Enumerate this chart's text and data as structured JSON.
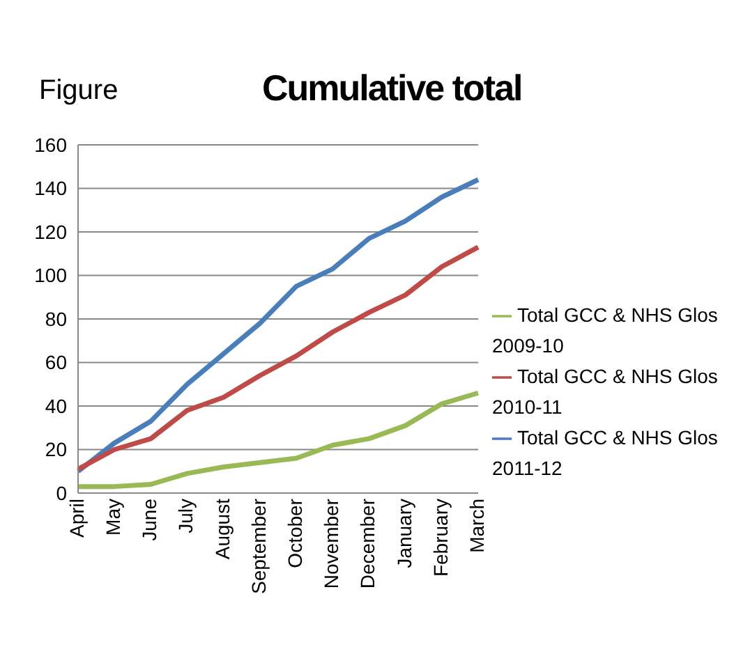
{
  "chart_data": {
    "type": "line",
    "title": "Cumulative total",
    "annotations": [
      "Figure"
    ],
    "categories": [
      "April",
      "May",
      "June",
      "July",
      "August",
      "September",
      "October",
      "November",
      "December",
      "January",
      "February",
      "March"
    ],
    "series": [
      {
        "name": "Total GCC & NHS Glos 2011-12",
        "color": "#4a7ebb",
        "values": [
          10,
          23,
          33,
          50,
          64,
          78,
          95,
          103,
          117,
          125,
          136,
          144
        ]
      },
      {
        "name": "Total GCC & NHS Glos 2010-11",
        "color": "#be4b48",
        "values": [
          11,
          20,
          25,
          38,
          44,
          54,
          63,
          74,
          83,
          91,
          104,
          113
        ]
      },
      {
        "name": "Total GCC & NHS Glos 2009-10",
        "color": "#98b954",
        "values": [
          3,
          3,
          4,
          9,
          12,
          14,
          16,
          22,
          25,
          31,
          41,
          46
        ]
      }
    ],
    "ylim": [
      0,
      160
    ],
    "yticks": [
      0,
      20,
      40,
      60,
      80,
      100,
      120,
      140,
      160
    ],
    "grid": "y",
    "legend": "right",
    "marker": "none",
    "line_style": "solid"
  }
}
